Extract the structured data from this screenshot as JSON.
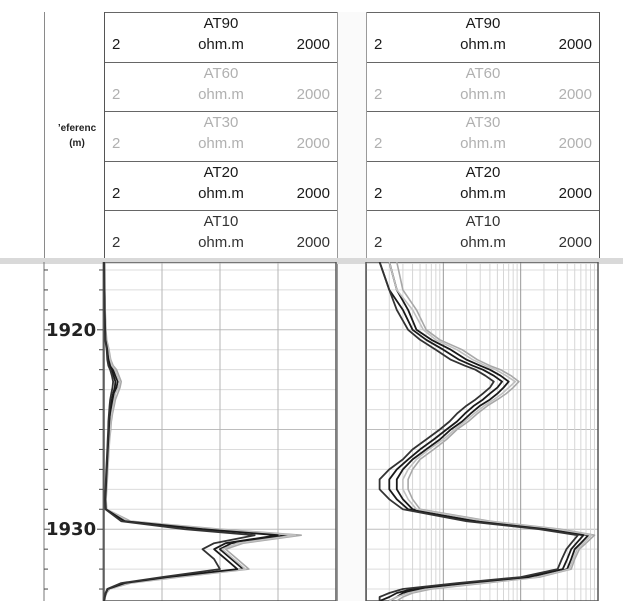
{
  "depth_track": {
    "title": "’eferenc",
    "unit": "(m)",
    "ticks": [
      "1920",
      "1930"
    ]
  },
  "tracks": [
    {
      "curves": [
        {
          "name": "AT90",
          "min": "2",
          "unit": "ohm.m",
          "max": "2000",
          "color": "#1a1a1a"
        },
        {
          "name": "AT60",
          "min": "2",
          "unit": "ohm.m",
          "max": "2000",
          "color": "#b0b0b0"
        },
        {
          "name": "AT30",
          "min": "2",
          "unit": "ohm.m",
          "max": "2000",
          "color": "#b0b0b0"
        },
        {
          "name": "AT20",
          "min": "2",
          "unit": "ohm.m",
          "max": "2000",
          "color": "#1a1a1a"
        },
        {
          "name": "AT10",
          "min": "2",
          "unit": "ohm.m",
          "max": "2000",
          "color": "#333333"
        }
      ]
    },
    {
      "curves": [
        {
          "name": "AT90",
          "min": "2",
          "unit": "ohm.m",
          "max": "2000",
          "color": "#1a1a1a"
        },
        {
          "name": "AT60",
          "min": "2",
          "unit": "ohm.m",
          "max": "2000",
          "color": "#b0b0b0"
        },
        {
          "name": "AT30",
          "min": "2",
          "unit": "ohm.m",
          "max": "2000",
          "color": "#b0b0b0"
        },
        {
          "name": "AT20",
          "min": "2",
          "unit": "ohm.m",
          "max": "2000",
          "color": "#1a1a1a"
        },
        {
          "name": "AT10",
          "min": "2",
          "unit": "ohm.m",
          "max": "2000",
          "color": "#333333"
        }
      ]
    }
  ],
  "chart_data": [
    {
      "type": "line",
      "x_scale": "linear",
      "xlim": [
        2,
        2000
      ],
      "ylim": [
        1916.6,
        1933.6
      ],
      "series": [
        {
          "name": "AT90",
          "color": "#1a1a1a",
          "x": [
            5,
            7,
            10,
            14,
            18,
            35,
            45,
            60,
            80,
            100,
            120,
            110,
            90,
            80,
            70,
            60,
            55,
            50,
            45,
            40,
            35,
            30,
            25,
            20,
            15,
            20,
            200,
            900,
            1600,
            1100,
            1000,
            1100,
            1200,
            600,
            200,
            40,
            20,
            10,
            5
          ],
          "y": [
            1916.6,
            1918,
            1919,
            1920,
            1920.5,
            1921,
            1921.5,
            1921.8,
            1922,
            1922.3,
            1922.6,
            1922.9,
            1923.2,
            1923.5,
            1923.8,
            1924.2,
            1924.6,
            1925,
            1925.5,
            1926,
            1926.5,
            1927,
            1927.5,
            1928,
            1928.5,
            1929,
            1929.6,
            1930,
            1930.3,
            1930.7,
            1931,
            1931.5,
            1932,
            1932.4,
            1932.7,
            1933,
            1933.2,
            1933.4,
            1933.6
          ]
        },
        {
          "name": "AT60",
          "color": "#a8a8a8",
          "x": [
            6,
            8,
            12,
            18,
            25,
            45,
            60,
            80,
            110,
            130,
            150,
            140,
            120,
            100,
            90,
            75,
            65,
            60,
            50,
            45,
            40,
            35,
            30,
            25,
            20,
            25,
            230,
            1000,
            1700,
            1200,
            1050,
            1150,
            1250,
            650,
            230,
            50,
            25,
            12,
            6
          ],
          "y": [
            1916.6,
            1918,
            1919,
            1920,
            1920.5,
            1921,
            1921.5,
            1921.8,
            1922,
            1922.3,
            1922.6,
            1922.9,
            1923.2,
            1923.5,
            1923.8,
            1924.2,
            1924.6,
            1925,
            1925.5,
            1926,
            1926.5,
            1927,
            1927.5,
            1928,
            1928.5,
            1929,
            1929.6,
            1930,
            1930.3,
            1930.7,
            1931,
            1931.5,
            1932,
            1932.4,
            1932.7,
            1933,
            1933.2,
            1933.4,
            1933.6
          ]
        },
        {
          "name": "AT30",
          "color": "#c0c0c0",
          "x": [
            5,
            7,
            11,
            16,
            22,
            40,
            55,
            70,
            95,
            115,
            135,
            125,
            100,
            90,
            80,
            68,
            60,
            55,
            48,
            43,
            38,
            33,
            28,
            22,
            18,
            22,
            210,
            950,
            1650,
            1150,
            1020,
            1120,
            1220,
            620,
            210,
            45,
            22,
            11,
            5
          ],
          "y": [
            1916.6,
            1918,
            1919,
            1920,
            1920.5,
            1921,
            1921.5,
            1921.8,
            1922,
            1922.3,
            1922.6,
            1922.9,
            1923.2,
            1923.5,
            1923.8,
            1924.2,
            1924.6,
            1925,
            1925.5,
            1926,
            1926.5,
            1927,
            1927.5,
            1928,
            1928.5,
            1929,
            1929.6,
            1930,
            1930.3,
            1930.7,
            1931,
            1931.5,
            1932,
            1932.4,
            1932.7,
            1933,
            1933.2,
            1933.4,
            1933.6
          ]
        },
        {
          "name": "AT20",
          "color": "#1a1a1a",
          "x": [
            4,
            6,
            8,
            12,
            15,
            30,
            38,
            50,
            70,
            85,
            100,
            95,
            80,
            70,
            60,
            52,
            48,
            44,
            40,
            35,
            30,
            26,
            22,
            18,
            13,
            18,
            180,
            850,
            1500,
            1050,
            950,
            1050,
            1150,
            550,
            180,
            35,
            18,
            9,
            4
          ],
          "y": [
            1916.6,
            1918,
            1919,
            1920,
            1920.5,
            1921,
            1921.5,
            1921.8,
            1922,
            1922.3,
            1922.6,
            1922.9,
            1923.2,
            1923.5,
            1923.8,
            1924.2,
            1924.6,
            1925,
            1925.5,
            1926,
            1926.5,
            1927,
            1927.5,
            1928,
            1928.5,
            1929,
            1929.6,
            1930,
            1930.3,
            1930.7,
            1931,
            1931.5,
            1932,
            1932.4,
            1932.7,
            1933,
            1933.2,
            1933.4,
            1933.6
          ]
        },
        {
          "name": "AT10",
          "color": "#333333",
          "x": [
            3,
            5,
            7,
            10,
            12,
            25,
            30,
            40,
            55,
            70,
            80,
            75,
            65,
            55,
            50,
            45,
            40,
            38,
            34,
            30,
            26,
            22,
            18,
            15,
            10,
            15,
            150,
            700,
            1300,
            950,
            850,
            950,
            1000,
            500,
            150,
            30,
            15,
            8,
            3
          ],
          "y": [
            1916.6,
            1918,
            1919,
            1920,
            1920.5,
            1921,
            1921.5,
            1921.8,
            1922,
            1922.3,
            1922.6,
            1922.9,
            1923.2,
            1923.5,
            1923.8,
            1924.2,
            1924.6,
            1925,
            1925.5,
            1926,
            1926.5,
            1927,
            1927.5,
            1928,
            1928.5,
            1929,
            1929.6,
            1930,
            1930.3,
            1930.7,
            1931,
            1931.5,
            1932,
            1932.4,
            1932.7,
            1933,
            1933.2,
            1933.4,
            1933.6
          ]
        }
      ]
    },
    {
      "type": "line",
      "x_scale": "log",
      "xlim": [
        2,
        2000
      ],
      "ylim": [
        1916.6,
        1933.6
      ],
      "series": [
        {
          "name": "AT90",
          "color": "#1a1a1a",
          "x": [
            4,
            5,
            7,
            9,
            14,
            25,
            40,
            60,
            80,
            110,
            140,
            120,
            100,
            80,
            60,
            45,
            35,
            25,
            18,
            12,
            8,
            6,
            5,
            5,
            6,
            8,
            60,
            500,
            1500,
            1200,
            1000,
            900,
            800,
            300,
            50,
            10,
            6,
            5,
            4
          ],
          "y": [
            1916.6,
            1918,
            1919,
            1920,
            1920.5,
            1921,
            1921.5,
            1921.8,
            1922,
            1922.3,
            1922.6,
            1922.9,
            1923.2,
            1923.5,
            1923.8,
            1924.2,
            1924.6,
            1925,
            1925.5,
            1926,
            1926.5,
            1927,
            1927.5,
            1928,
            1928.5,
            1929,
            1929.6,
            1930,
            1930.3,
            1930.7,
            1931,
            1931.5,
            1932,
            1932.4,
            1932.7,
            1933,
            1933.2,
            1933.4,
            1933.6
          ]
        },
        {
          "name": "AT60",
          "color": "#a8a8a8",
          "x": [
            5,
            6,
            9,
            12,
            18,
            35,
            55,
            80,
            110,
            150,
            190,
            160,
            130,
            100,
            75,
            55,
            42,
            30,
            22,
            15,
            10,
            8,
            7,
            7,
            8,
            10,
            80,
            650,
            1800,
            1400,
            1150,
            1000,
            900,
            350,
            70,
            14,
            8,
            6,
            5
          ],
          "y": [
            1916.6,
            1918,
            1919,
            1920,
            1920.5,
            1921,
            1921.5,
            1921.8,
            1922,
            1922.3,
            1922.6,
            1922.9,
            1923.2,
            1923.5,
            1923.8,
            1924.2,
            1924.6,
            1925,
            1925.5,
            1926,
            1926.5,
            1927,
            1927.5,
            1928,
            1928.5,
            1929,
            1929.6,
            1930,
            1930.3,
            1930.7,
            1931,
            1931.5,
            1932,
            1932.4,
            1932.7,
            1933,
            1933.2,
            1933.4,
            1933.6
          ]
        },
        {
          "name": "AT30",
          "color": "#c0c0c0",
          "x": [
            4,
            5,
            8,
            11,
            16,
            30,
            48,
            70,
            95,
            130,
            170,
            140,
            115,
            90,
            68,
            50,
            38,
            28,
            20,
            13,
            9,
            7,
            6,
            6,
            7,
            9,
            70,
            580,
            1650,
            1300,
            1080,
            950,
            850,
            320,
            60,
            12,
            7,
            5,
            4
          ],
          "y": [
            1916.6,
            1918,
            1919,
            1920,
            1920.5,
            1921,
            1921.5,
            1921.8,
            1922,
            1922.3,
            1922.6,
            1922.9,
            1923.2,
            1923.5,
            1923.8,
            1924.2,
            1924.6,
            1925,
            1925.5,
            1926,
            1926.5,
            1927,
            1927.5,
            1928,
            1928.5,
            1929,
            1929.6,
            1930,
            1930.3,
            1930.7,
            1931,
            1931.5,
            1932,
            1932.4,
            1932.7,
            1933,
            1933.2,
            1933.4,
            1933.6
          ]
        },
        {
          "name": "AT20",
          "color": "#1a1a1a",
          "x": [
            3,
            4,
            6,
            8,
            12,
            20,
            32,
            48,
            65,
            90,
            115,
            100,
            80,
            65,
            50,
            38,
            30,
            22,
            15,
            10,
            7,
            5,
            4,
            4,
            5,
            7,
            50,
            420,
            1300,
            1050,
            900,
            800,
            700,
            250,
            40,
            8,
            5,
            4,
            3
          ],
          "y": [
            1916.6,
            1918,
            1919,
            1920,
            1920.5,
            1921,
            1921.5,
            1921.8,
            1922,
            1922.3,
            1922.6,
            1922.9,
            1923.2,
            1923.5,
            1923.8,
            1924.2,
            1924.6,
            1925,
            1925.5,
            1926,
            1926.5,
            1927,
            1927.5,
            1928,
            1928.5,
            1929,
            1929.6,
            1930,
            1930.3,
            1930.7,
            1931,
            1931.5,
            1932,
            1932.4,
            1932.7,
            1933,
            1933.2,
            1933.4,
            1933.6
          ]
        },
        {
          "name": "AT10",
          "color": "#333333",
          "x": [
            3,
            4,
            5,
            7,
            10,
            16,
            25,
            38,
            52,
            70,
            90,
            80,
            65,
            52,
            40,
            30,
            24,
            18,
            12,
            8,
            6,
            4,
            3,
            3,
            4,
            6,
            40,
            350,
            1100,
            900,
            780,
            680,
            600,
            200,
            30,
            6,
            4,
            3,
            3
          ],
          "y": [
            1916.6,
            1918,
            1919,
            1920,
            1920.5,
            1921,
            1921.5,
            1921.8,
            1922,
            1922.3,
            1922.6,
            1922.9,
            1923.2,
            1923.5,
            1923.8,
            1924.2,
            1924.6,
            1925,
            1925.5,
            1926,
            1926.5,
            1927,
            1927.5,
            1928,
            1928.5,
            1929,
            1929.6,
            1930,
            1930.3,
            1930.7,
            1931,
            1931.5,
            1932,
            1932.4,
            1932.7,
            1933,
            1933.2,
            1933.4,
            1933.6
          ]
        }
      ]
    }
  ]
}
